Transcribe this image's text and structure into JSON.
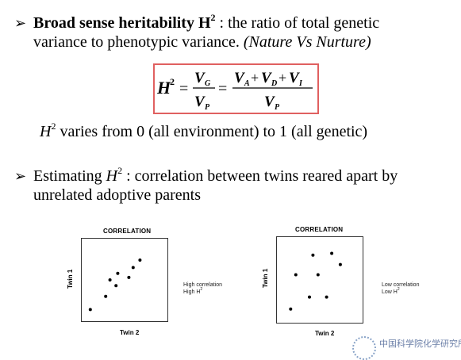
{
  "bullet1": {
    "arrow": "➢",
    "bold": "Broad sense heritability H",
    "bold_sup": "2",
    "text1": " : the ratio of total genetic",
    "text2": "variance to phenotypic variance. ",
    "italic": "(Nature Vs Nurture)"
  },
  "formula": {
    "lhs": "H",
    "lhs_sup": "2",
    "eq1": "=",
    "num1": "V",
    "num1_sub": "G",
    "den1": "V",
    "den1_sub": "P",
    "eq2": "=",
    "num2_a": "V",
    "num2_a_sub": "A",
    "plus1": "+",
    "num2_b": "V",
    "num2_b_sub": "D",
    "plus2": "+",
    "num2_c": "V",
    "num2_c_sub": "I",
    "den2": "V",
    "den2_sub": "P"
  },
  "range": {
    "h": "H",
    "sup": "2",
    "text": " varies from 0 (all environment) to 1 (all genetic)"
  },
  "bullet2": {
    "arrow": "➢",
    "text1": "Estimating ",
    "h": "H",
    "sup": "2",
    "text2": " : correlation between twins reared apart by",
    "text3": "unrelated adoptive parents"
  },
  "plots": [
    {
      "title": "CORRELATION",
      "ylabel": "Twin 1",
      "xlabel": "Twin 2",
      "note1": "High correlation",
      "note2": "High H",
      "note2_sup": "2",
      "points": [
        [
          0.1,
          0.14
        ],
        [
          0.28,
          0.3
        ],
        [
          0.33,
          0.5
        ],
        [
          0.4,
          0.43
        ],
        [
          0.42,
          0.58
        ],
        [
          0.55,
          0.53
        ],
        [
          0.6,
          0.65
        ],
        [
          0.68,
          0.74
        ]
      ]
    },
    {
      "title": "CORRELATION",
      "ylabel": "Twin 1",
      "xlabel": "Twin 2",
      "note1": "Low correlation",
      "note2": "Low H",
      "note2_sup": "2",
      "points": [
        [
          0.16,
          0.16
        ],
        [
          0.22,
          0.56
        ],
        [
          0.38,
          0.3
        ],
        [
          0.42,
          0.79
        ],
        [
          0.48,
          0.56
        ],
        [
          0.58,
          0.3
        ],
        [
          0.64,
          0.81
        ],
        [
          0.74,
          0.68
        ]
      ]
    }
  ],
  "footer": {
    "text": "中国科学院化学研究所"
  }
}
